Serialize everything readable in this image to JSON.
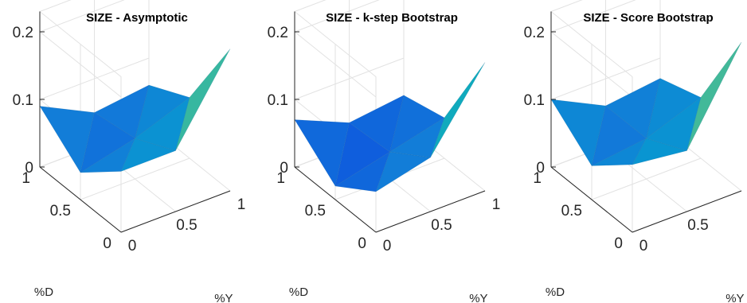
{
  "chart_data": [
    {
      "type": "surface",
      "title": "SIZE - Asymptotic",
      "xlabel": "%Y",
      "ylabel": "%D",
      "zlabel": "",
      "x": [
        0,
        0.5,
        1
      ],
      "y": [
        0,
        0.5,
        1
      ],
      "xticks": [
        "0",
        "0.5",
        "1"
      ],
      "yticks": [
        "0",
        "0.5",
        "1"
      ],
      "zticks": [
        "0",
        "0.1",
        "0.2"
      ],
      "zlim": [
        0,
        0.2
      ],
      "colormap": "parula",
      "z": [
        [
          0.09,
          0.09,
          0.21
        ],
        [
          0.04,
          0.06,
          0.09
        ],
        [
          0.09,
          0.05,
          0.06
        ]
      ]
    },
    {
      "type": "surface",
      "title": "SIZE - k-step Bootstrap",
      "xlabel": "%Y",
      "ylabel": "%D",
      "zlabel": "",
      "x": [
        0,
        0.5,
        1
      ],
      "y": [
        0,
        0.5,
        1
      ],
      "xticks": [
        "0",
        "0.5",
        "1"
      ],
      "yticks": [
        "0",
        "0.5",
        "1"
      ],
      "zticks": [
        "0",
        "0.1",
        "0.2"
      ],
      "zlim": [
        0,
        0.2
      ],
      "colormap": "parula",
      "z": [
        [
          0.06,
          0.08,
          0.19
        ],
        [
          0.02,
          0.04,
          0.06
        ],
        [
          0.07,
          0.035,
          0.045
        ]
      ]
    },
    {
      "type": "surface",
      "title": "SIZE - Score Bootstrap",
      "xlabel": "%Y",
      "ylabel": "%D",
      "zlabel": "",
      "x": [
        0,
        0.5,
        1
      ],
      "y": [
        0,
        0.5,
        1
      ],
      "xticks": [
        "0",
        "0.5",
        "1"
      ],
      "yticks": [
        "0",
        "0.5",
        "1"
      ],
      "zticks": [
        "0",
        "0.1",
        "0.2"
      ],
      "zlim": [
        0,
        0.2
      ],
      "colormap": "parula",
      "z": [
        [
          0.1,
          0.09,
          0.22
        ],
        [
          0.05,
          0.06,
          0.09
        ],
        [
          0.1,
          0.06,
          0.07
        ]
      ]
    }
  ]
}
